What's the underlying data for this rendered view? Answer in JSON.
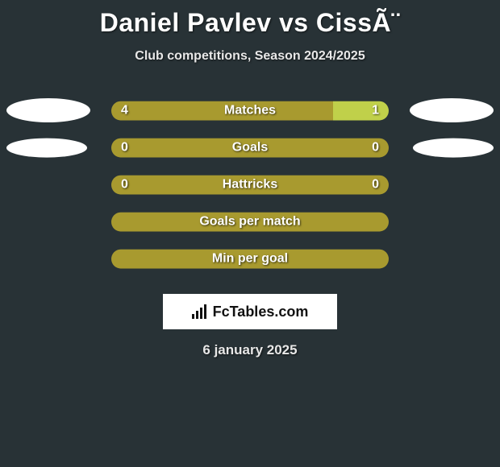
{
  "colors": {
    "background": "#283236",
    "left_seg": "#a89a2f",
    "right_seg": "#c0d04a",
    "single_seg": "#a89a2f",
    "text": "#ffffff",
    "ellipse": "#ffffff",
    "logo_bg": "#ffffff",
    "logo_fg": "#111111"
  },
  "title": "Daniel Pavlev vs CissÃ¨",
  "subtitle": "Club competitions, Season 2024/2025",
  "logo_text": "FcTables.com",
  "date": "6 january 2025",
  "bar_style": {
    "height": 24,
    "radius": 12,
    "fontsize": 16,
    "fontweight": 800
  },
  "rows": [
    {
      "label": "Matches",
      "left_value": "4",
      "right_value": "1",
      "left_pct": 80,
      "right_pct": 20,
      "left_color": "#a89a2f",
      "right_color": "#c0d04a",
      "ellipses": {
        "left": "big",
        "right": "big"
      }
    },
    {
      "label": "Goals",
      "left_value": "0",
      "right_value": "0",
      "left_pct": 50,
      "right_pct": 50,
      "left_color": "#a89a2f",
      "right_color": "#a89a2f",
      "ellipses": {
        "left": "small",
        "right": "small"
      }
    },
    {
      "label": "Hattricks",
      "left_value": "0",
      "right_value": "0",
      "left_pct": 50,
      "right_pct": 50,
      "left_color": "#a89a2f",
      "right_color": "#a89a2f",
      "ellipses": null
    },
    {
      "label": "Goals per match",
      "left_value": "",
      "right_value": "",
      "left_pct": 100,
      "right_pct": 0,
      "left_color": "#a89a2f",
      "right_color": "#a89a2f",
      "ellipses": null
    },
    {
      "label": "Min per goal",
      "left_value": "",
      "right_value": "",
      "left_pct": 100,
      "right_pct": 0,
      "left_color": "#a89a2f",
      "right_color": "#a89a2f",
      "ellipses": null
    }
  ]
}
